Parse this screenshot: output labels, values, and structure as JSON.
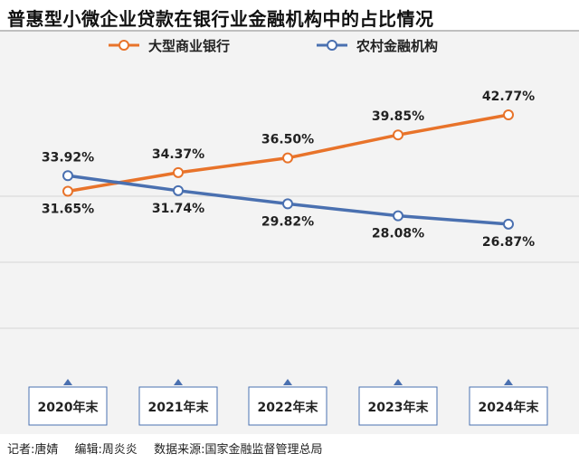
{
  "title": "普惠型小微企业贷款在银行业金融机构中的占比情况",
  "colors": {
    "orange": "#e8732a",
    "blue": "#4a70b0",
    "grid": "#d4d4d4",
    "box_border": "#4a70b0"
  },
  "footer": {
    "reporter": "记者:唐婧",
    "editor": "编辑:周炎炎",
    "source": "数据来源:国家金融监督管理总局"
  },
  "chart_data": {
    "type": "line",
    "categories": [
      "2020年末",
      "2021年末",
      "2022年末",
      "2023年末",
      "2024年末"
    ],
    "series": [
      {
        "name": "大型商业银行",
        "color": "#e8732a",
        "values": [
          31.65,
          34.37,
          36.5,
          39.85,
          42.77
        ],
        "labels": [
          "31.65%",
          "34.37%",
          "36.50%",
          "39.85%",
          "42.77%"
        ]
      },
      {
        "name": "农村金融机构",
        "color": "#4a70b0",
        "values": [
          33.92,
          31.74,
          29.82,
          28.08,
          26.87
        ],
        "labels": [
          "33.92%",
          "31.74%",
          "29.82%",
          "28.08%",
          "26.87%"
        ]
      }
    ],
    "grid": true,
    "legend_position": "top"
  }
}
